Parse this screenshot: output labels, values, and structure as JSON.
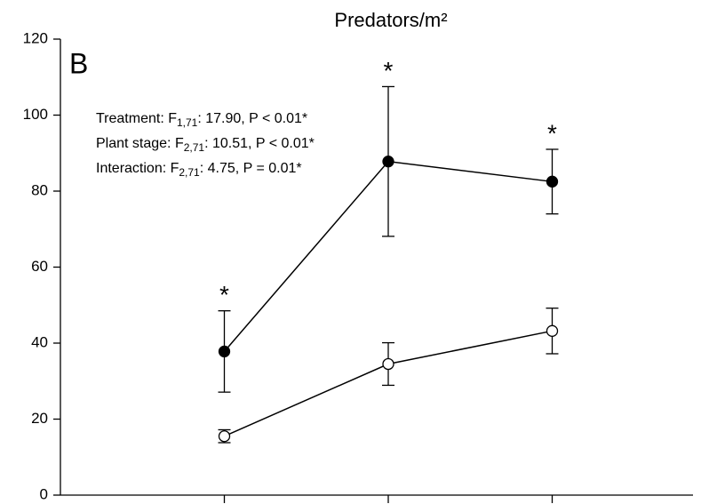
{
  "chart_data": {
    "type": "line",
    "title": "Predators/m²",
    "panel_label": "B",
    "annotations": [
      {
        "text": "Treatment: F",
        "sub": "1,71",
        "rest": ": 17.90, P < 0.01*"
      },
      {
        "text": "Plant stage: F",
        "sub": "2,71",
        "rest": ": 10.51, P < 0.01*"
      },
      {
        "text": "Interaction: F",
        "sub": "2,71",
        "rest": ": 4.75, P = 0.01*"
      }
    ],
    "categories": [
      null,
      null,
      null
    ],
    "series": [
      {
        "color": "#000000",
        "marker_fill": "#000000",
        "values": [
          37.8,
          87.8,
          82.5
        ],
        "errors": [
          10.7,
          19.7,
          8.5
        ],
        "significance": [
          "*",
          "*",
          "*"
        ]
      },
      {
        "color": "#000000",
        "marker_fill": "#ffffff",
        "values": [
          15.5,
          34.5,
          43.2
        ],
        "errors": [
          1.7,
          5.6,
          6.0
        ]
      }
    ],
    "ylim": [
      0,
      120
    ],
    "yticks": [
      0,
      20,
      40,
      60,
      80,
      100,
      120
    ],
    "grid": false
  }
}
